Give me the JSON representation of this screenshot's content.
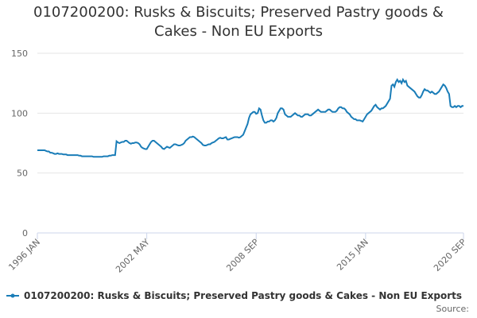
{
  "chart_data": {
    "type": "line",
    "title": "0107200200: Rusks & Biscuits; Preserved Pastry goods & Cakes - Non EU Exports",
    "source": "Source:",
    "categories": [
      "1996 JAN",
      null,
      null,
      null,
      null,
      null,
      null,
      null,
      null,
      null,
      null,
      null,
      null,
      null,
      null,
      null,
      null,
      null,
      null,
      null,
      null,
      null,
      null,
      null,
      null,
      null,
      null,
      null,
      null,
      null,
      null,
      null,
      null,
      null,
      null,
      null,
      null,
      null,
      null,
      null,
      null,
      null,
      null,
      null,
      null,
      null,
      null,
      null,
      null,
      null,
      null,
      null,
      null,
      null,
      null,
      null,
      null,
      null,
      null,
      null,
      null,
      null,
      null,
      null,
      null,
      null,
      null,
      null,
      null,
      null,
      null,
      null,
      null,
      null,
      null,
      null,
      "2002 MAY",
      null,
      null,
      null,
      null,
      null,
      null,
      null,
      null,
      null,
      null,
      null,
      null,
      null,
      null,
      null,
      null,
      null,
      null,
      null,
      null,
      null,
      null,
      null,
      null,
      null,
      null,
      null,
      null,
      null,
      null,
      null,
      null,
      null,
      null,
      null,
      null,
      null,
      null,
      null,
      null,
      null,
      null,
      null,
      null,
      null,
      null,
      null,
      null,
      null,
      null,
      null,
      null,
      null,
      null,
      null,
      null,
      null,
      null,
      null,
      null,
      null,
      null,
      null,
      null,
      null,
      null,
      null,
      null,
      null,
      null,
      null,
      null,
      null,
      null,
      null,
      "2008 SEP",
      null,
      null,
      null,
      null,
      null,
      null,
      null,
      null,
      null,
      null,
      null,
      null,
      null,
      null,
      null,
      null,
      null,
      null,
      null,
      null,
      null,
      null,
      null,
      null,
      null,
      null,
      null,
      null,
      null,
      null,
      null,
      null,
      null,
      null,
      null,
      null,
      null,
      null,
      null,
      null,
      null,
      null,
      null,
      null,
      null,
      null,
      null,
      null,
      null,
      null,
      null,
      null,
      null,
      null,
      null,
      null,
      null,
      null,
      null,
      null,
      null,
      null,
      null,
      null,
      null,
      null,
      null,
      null,
      null,
      null,
      null,
      null,
      null,
      null,
      null,
      "2015 JAN",
      null,
      null,
      null,
      null,
      null,
      null,
      null,
      null,
      null,
      null,
      null,
      null,
      null,
      null,
      null,
      null,
      null,
      null,
      null,
      null,
      null,
      null,
      null,
      null,
      null,
      null,
      null,
      null,
      null,
      null,
      null,
      null,
      null,
      null,
      null,
      null,
      null,
      null,
      null,
      null,
      null,
      null,
      null,
      null,
      null,
      null,
      null,
      null,
      null,
      null,
      null,
      null,
      null,
      null,
      null,
      null,
      null,
      null,
      null,
      null,
      null,
      null,
      null,
      null,
      null,
      null,
      null,
      "2020 SEP"
    ],
    "series": [
      {
        "name": "0107200200: Rusks & Biscuits; Preserved Pastry goods & Cakes - Non EU Exports",
        "color": "#1a7db8",
        "values": [
          69,
          69,
          69,
          69,
          69,
          69,
          68.5,
          68,
          68,
          67,
          67,
          66.5,
          66,
          66,
          66.5,
          66,
          66,
          66,
          65.5,
          65.5,
          65.5,
          65,
          65,
          65,
          65,
          65,
          65,
          65,
          65,
          64.5,
          64.5,
          64,
          64,
          64,
          64,
          64,
          64,
          64,
          64,
          63.5,
          63.5,
          63.5,
          63.5,
          63.5,
          63.5,
          63.5,
          64,
          64,
          64,
          64,
          64.5,
          64.5,
          65,
          65,
          65,
          76.5,
          75.5,
          75,
          75.5,
          76,
          76,
          77,
          77,
          76,
          75,
          74.5,
          75,
          75,
          75.5,
          75.5,
          75,
          74,
          72,
          71,
          70.5,
          70,
          70,
          72,
          74,
          76,
          77,
          77,
          76,
          75,
          74,
          73,
          72,
          70.5,
          70,
          71,
          72,
          71.5,
          71,
          72,
          73,
          74,
          74,
          73.5,
          73,
          73,
          73.5,
          74,
          75,
          77,
          78,
          79,
          80,
          80,
          80.5,
          80,
          79,
          78,
          77,
          76,
          75,
          73.5,
          73,
          73,
          73.5,
          74,
          74,
          75,
          75.5,
          76,
          77,
          78,
          79,
          79.5,
          79,
          79,
          79.5,
          80,
          78,
          78,
          78.5,
          79,
          79.5,
          80,
          80,
          80,
          79.5,
          80,
          81,
          82,
          85,
          88,
          91,
          96,
          99,
          100,
          101,
          101,
          99.5,
          100,
          104,
          103,
          98,
          94,
          92,
          92,
          93,
          93,
          94,
          94,
          93,
          94,
          96,
          100,
          102,
          104,
          104,
          103,
          99,
          98,
          97,
          97,
          97,
          98,
          99,
          100,
          99,
          98,
          98,
          97,
          97,
          98,
          99,
          99,
          99,
          98,
          98,
          99,
          100,
          101,
          102,
          103,
          102,
          101,
          101,
          101,
          101,
          102,
          103,
          103,
          102,
          101,
          101,
          101,
          102,
          104,
          105,
          105,
          104,
          104,
          103,
          101,
          100,
          99,
          97,
          96,
          95,
          95,
          94,
          94,
          94,
          93.5,
          93,
          95,
          97,
          99,
          100,
          101,
          102,
          104,
          106,
          107,
          105,
          104,
          103,
          104,
          104,
          105,
          106,
          108,
          110,
          112,
          123,
          124,
          122,
          126,
          128,
          126,
          127,
          125,
          128,
          126,
          127,
          123,
          122,
          121,
          120,
          119,
          118,
          116,
          114,
          113,
          113,
          115,
          118,
          120,
          119,
          119,
          118,
          117,
          118,
          117,
          116,
          116,
          117,
          118,
          120,
          122,
          124,
          123,
          121,
          118,
          116,
          106,
          105,
          105,
          106,
          105,
          106,
          106,
          105,
          106,
          106
        ]
      }
    ],
    "ylim": [
      0,
      150
    ],
    "yticks": [
      0,
      50,
      100,
      150
    ],
    "grid": true
  }
}
